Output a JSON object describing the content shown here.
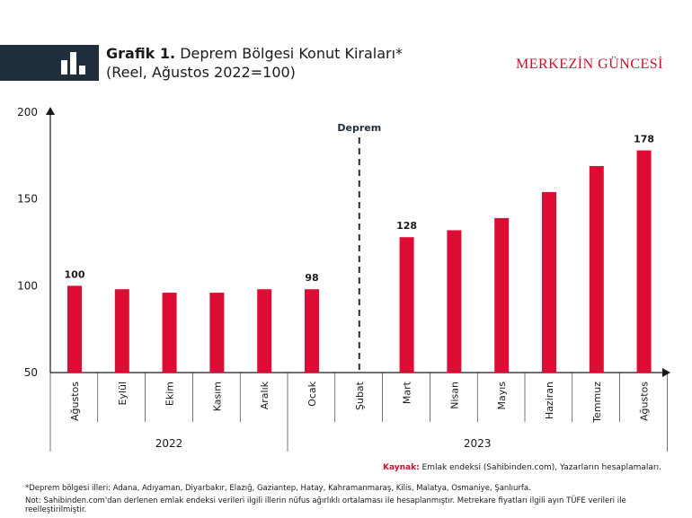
{
  "header": {
    "title_bold": "Grafik 1.",
    "title_rest": " Deprem Bölgesi Konut Kiraları*",
    "subtitle": "(Reel, Ağustos 2022=100)",
    "brand": "MERKEZİN GÜNCESİ",
    "logo_icon": "bar-chart-icon"
  },
  "chart_data": {
    "type": "bar",
    "categories": [
      "Ağustos",
      "Eylül",
      "Ekim",
      "Kasım",
      "Aralık",
      "Ocak",
      "Şubat",
      "Mart",
      "Nisan",
      "Mayıs",
      "Haziran",
      "Temmuz",
      "Ağustos"
    ],
    "values": [
      100,
      98,
      96,
      96,
      98,
      98,
      null,
      128,
      132,
      139,
      154,
      169,
      178
    ],
    "data_labels": [
      {
        "index": 0,
        "text": "100"
      },
      {
        "index": 5,
        "text": "98"
      },
      {
        "index": 7,
        "text": "128"
      },
      {
        "index": 12,
        "text": "178"
      }
    ],
    "year_groups": [
      {
        "label": "2022",
        "start": 0,
        "end": 4
      },
      {
        "label": "2023",
        "start": 5,
        "end": 12
      }
    ],
    "event_line": {
      "index": 6,
      "label": "Deprem"
    },
    "ylim": [
      50,
      200
    ],
    "yticks": [
      50,
      100,
      150,
      200
    ],
    "bar_color": "#dc0c35",
    "event_color": "#1f2d3d",
    "grid": false,
    "title": "",
    "xlabel": "",
    "ylabel": ""
  },
  "footer": {
    "source_label": "Kaynak:",
    "source_text": " Emlak endeksi (Sahibinden.com), Yazarların hesaplamaları.",
    "footnote": "*Deprem bölgesi illeri: Adana, Adıyaman, Diyarbakır, Elazığ, Gaziantep, Hatay, Kahramanmaraş, Kilis, Malatya, Osmaniye, Şanlıurfa.",
    "note": "Not: Sahibinden.com'dan derlenen emlak endeksi verileri ilgili illerin nüfus ağırlıklı ortalaması ile hesaplanmıştır. Metrekare fiyatları ilgili ayın TÜFE verileri ile reelleştirilmiştir."
  }
}
